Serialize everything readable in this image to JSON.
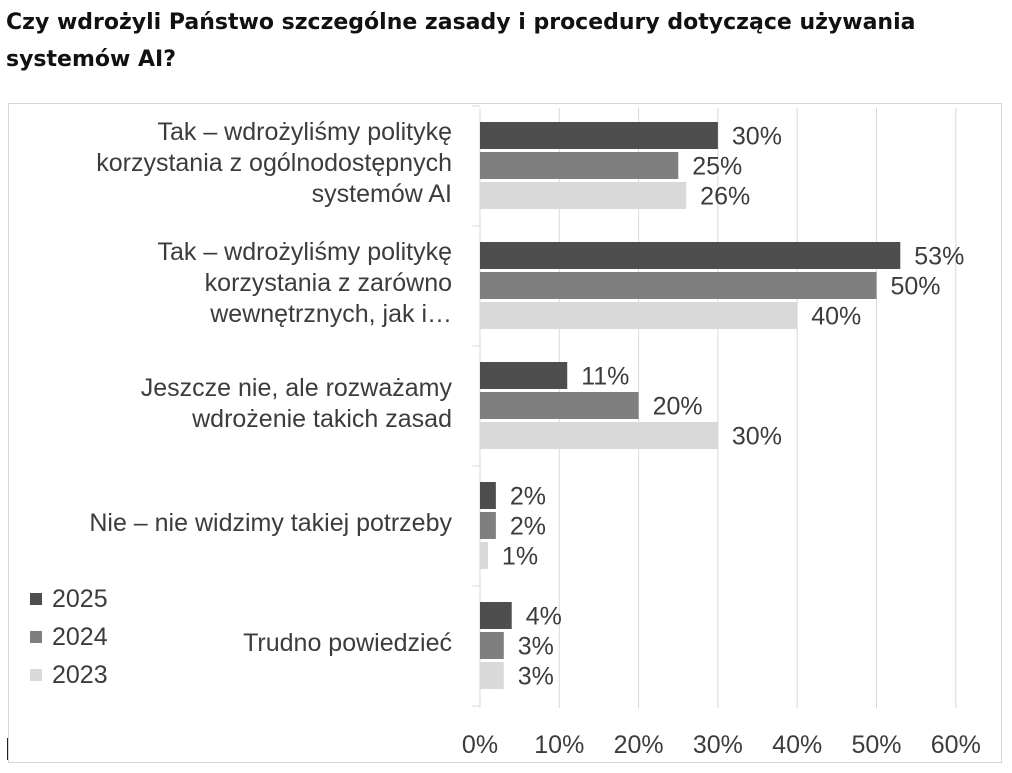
{
  "title": "Czy wdrożyli Państwo szczególne zasady i procedury dotyczące używania systemów AI?",
  "colors": {
    "series_2025": "#4e4e4e",
    "series_2024": "#7f7f7f",
    "series_2023": "#d9d9d9",
    "gridline": "#d9d9d9",
    "text": "#3c3c3c"
  },
  "chart_data": {
    "type": "bar",
    "orientation": "horizontal",
    "title": "Czy wdrożyli Państwo szczególne zasady i procedury dotyczące używania systemów AI?",
    "xlabel": "",
    "ylabel": "",
    "xlim": [
      0,
      60
    ],
    "x_ticks": [
      "0%",
      "10%",
      "20%",
      "30%",
      "40%",
      "50%",
      "60%"
    ],
    "grid": "vertical",
    "legend_position": "left-bottom",
    "categories": [
      [
        "Tak – wdrożyliśmy politykę",
        "korzystania z ogólnodostępnych",
        "systemów AI"
      ],
      [
        "Tak – wdrożyliśmy politykę",
        "korzystania z zarówno",
        "wewnętrznych, jak i…"
      ],
      [
        "Jeszcze nie, ale rozważamy",
        "wdrożenie takich zasad"
      ],
      [
        "Nie – nie widzimy takiej potrzeby"
      ],
      [
        "Trudno powiedzieć"
      ]
    ],
    "series": [
      {
        "name": "2025",
        "values": [
          30,
          53,
          11,
          2,
          4
        ],
        "labels": [
          "30%",
          "53%",
          "11%",
          "2%",
          "4%"
        ]
      },
      {
        "name": "2024",
        "values": [
          25,
          50,
          20,
          2,
          3
        ],
        "labels": [
          "25%",
          "50%",
          "20%",
          "2%",
          "3%"
        ]
      },
      {
        "name": "2023",
        "values": [
          26,
          40,
          30,
          1,
          3
        ],
        "labels": [
          "26%",
          "40%",
          "30%",
          "1%",
          "3%"
        ]
      }
    ]
  }
}
